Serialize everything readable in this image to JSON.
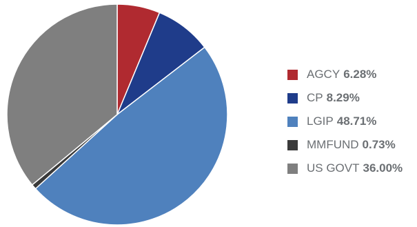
{
  "chart_data": {
    "type": "pie",
    "slices": [
      {
        "label": "AGCY",
        "value": 6.28,
        "value_label": "6.28%",
        "color": "#b02a30"
      },
      {
        "label": "CP",
        "value": 8.29,
        "value_label": "8.29%",
        "color": "#1f3c8a"
      },
      {
        "label": "LGIP",
        "value": 48.71,
        "value_label": "48.71%",
        "color": "#4f81bd"
      },
      {
        "label": "MMFUND",
        "value": 0.73,
        "value_label": "0.73%",
        "color": "#3a3a3a"
      },
      {
        "label": "US GOVT",
        "value": 36.0,
        "value_label": "36.00%",
        "color": "#7f7f7f"
      }
    ],
    "legend_position": "right",
    "start_angle": "12 o'clock, clockwise"
  }
}
